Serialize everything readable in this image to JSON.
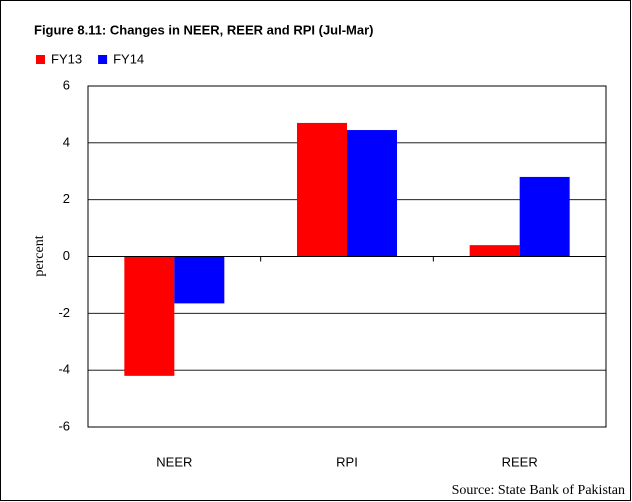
{
  "chart_data": {
    "type": "bar",
    "title": "Figure 8.11: Changes in NEER, REER and RPI (Jul-Mar)",
    "ylabel": "percent",
    "source": "Source: State Bank of Pakistan",
    "categories": [
      "NEER",
      "RPI",
      "REER"
    ],
    "series": [
      {
        "name": "FY13",
        "color": "#ff0000",
        "values": [
          -4.2,
          4.7,
          0.4
        ]
      },
      {
        "name": "FY14",
        "color": "#0000ff",
        "values": [
          -1.65,
          4.45,
          2.8
        ]
      }
    ],
    "ylim": [
      -6,
      6
    ],
    "yticks": [
      -6,
      -4,
      -2,
      0,
      2,
      4,
      6
    ],
    "grid": true
  }
}
